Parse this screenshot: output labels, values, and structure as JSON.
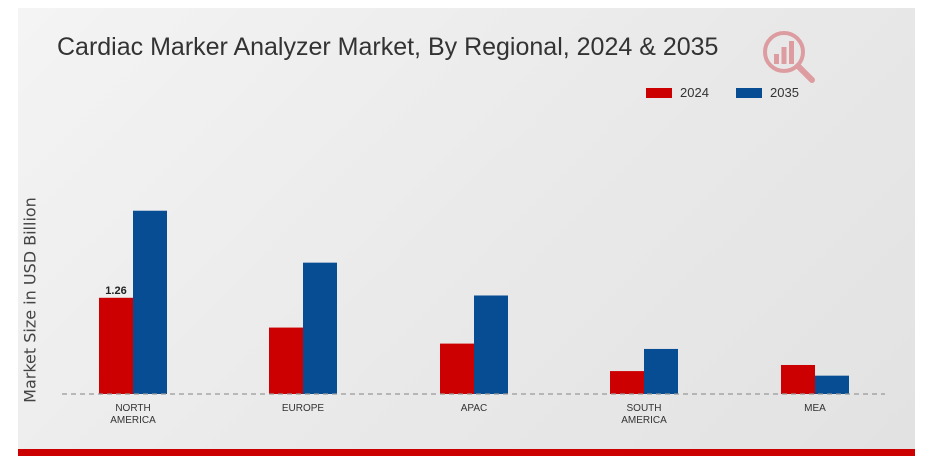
{
  "title": "Cardiac Marker Analyzer Market, By Regional, 2024 & 2035",
  "logo_icon": "analytics-magnifier-logo",
  "colors": {
    "2024": "#cc0000",
    "2035": "#064d93"
  },
  "chart_data": {
    "type": "bar",
    "title": "Cardiac Marker Analyzer Market, By Regional, 2024 & 2035",
    "xlabel": "",
    "ylabel": "Market Size in USD Billion",
    "categories": [
      "NORTH AMERICA",
      "EUROPE",
      "APAC",
      "SOUTH AMERICA",
      "MEA"
    ],
    "category_lines": [
      [
        "NORTH",
        "AMERICA"
      ],
      [
        "EUROPE"
      ],
      [
        "APAC"
      ],
      [
        "SOUTH",
        "AMERICA"
      ],
      [
        "MEA"
      ]
    ],
    "series": [
      {
        "name": "2024",
        "values": [
          1.26,
          0.87,
          0.66,
          0.3,
          0.38
        ]
      },
      {
        "name": "2035",
        "values": [
          2.4,
          1.72,
          1.29,
          0.59,
          0.24
        ]
      }
    ],
    "data_labels": [
      {
        "series": "2024",
        "category": "NORTH AMERICA",
        "text": "1.26"
      }
    ],
    "ylim": [
      0,
      3.3
    ],
    "grid": false,
    "legend_position": "top-right"
  }
}
